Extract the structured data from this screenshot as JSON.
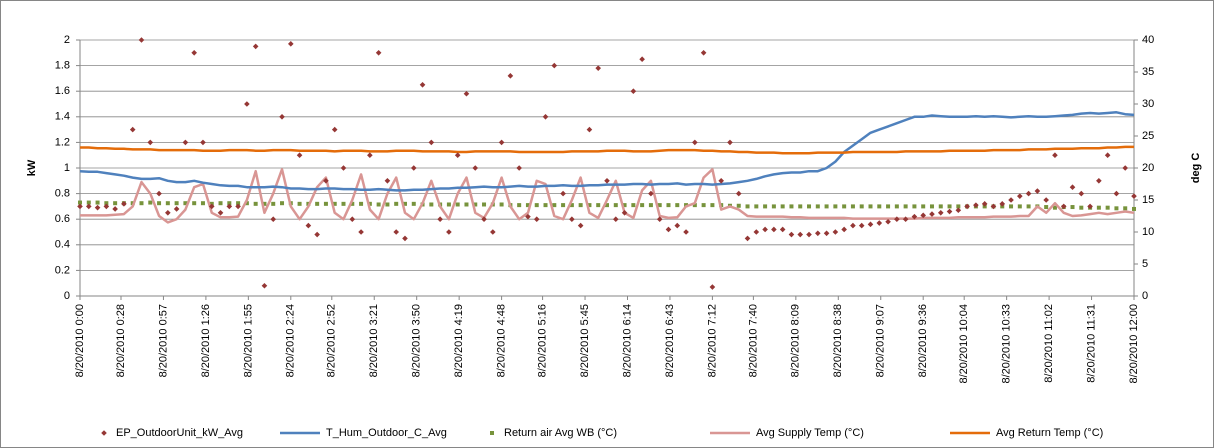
{
  "chart_data": {
    "type": "line",
    "y_label": "kW",
    "y2_label": "deg C",
    "xlim": [
      0,
      720
    ],
    "xticks": [
      {
        "value": 0,
        "label": "8/20/2010 0:00"
      },
      {
        "value": 28,
        "label": "8/20/2010 0:28"
      },
      {
        "value": 57,
        "label": "8/20/2010 0:57"
      },
      {
        "value": 86,
        "label": "8/20/2010 1:26"
      },
      {
        "value": 115,
        "label": "8/20/2010 1:55"
      },
      {
        "value": 144,
        "label": "8/20/2010 2:24"
      },
      {
        "value": 172,
        "label": "8/20/2010 2:52"
      },
      {
        "value": 201,
        "label": "8/20/2010 3:21"
      },
      {
        "value": 230,
        "label": "8/20/2010 3:50"
      },
      {
        "value": 259,
        "label": "8/20/2010 4:19"
      },
      {
        "value": 288,
        "label": "8/20/2010 4:48"
      },
      {
        "value": 316,
        "label": "8/20/2010 5:16"
      },
      {
        "value": 345,
        "label": "8/20/2010 5:45"
      },
      {
        "value": 374,
        "label": "8/20/2010 6:14"
      },
      {
        "value": 403,
        "label": "8/20/2010 6:43"
      },
      {
        "value": 432,
        "label": "8/20/2010 7:12"
      },
      {
        "value": 460,
        "label": "8/20/2010 7:40"
      },
      {
        "value": 489,
        "label": "8/20/2010 8:09"
      },
      {
        "value": 518,
        "label": "8/20/2010 8:38"
      },
      {
        "value": 547,
        "label": "8/20/2010 9:07"
      },
      {
        "value": 576,
        "label": "8/20/2010 9:36"
      },
      {
        "value": 604,
        "label": "8/20/2010 10:04"
      },
      {
        "value": 633,
        "label": "8/20/2010 10:33"
      },
      {
        "value": 662,
        "label": "8/20/2010 11:02"
      },
      {
        "value": 691,
        "label": "8/20/2010 11:31"
      },
      {
        "value": 720,
        "label": "8/20/2010 12:00"
      }
    ],
    "ylim": [
      0,
      2
    ],
    "yticks": [
      0,
      0.2,
      0.4,
      0.6,
      0.8,
      1,
      1.2,
      1.4,
      1.6,
      1.8,
      2
    ],
    "y2lim": [
      0,
      40
    ],
    "y2ticks": [
      0,
      5,
      10,
      15,
      20,
      25,
      30,
      35,
      40
    ],
    "grid": true,
    "legend": "bottom",
    "x": [
      0,
      6,
      12,
      18,
      24,
      30,
      36,
      42,
      48,
      54,
      60,
      66,
      72,
      78,
      84,
      90,
      96,
      102,
      108,
      114,
      120,
      126,
      132,
      138,
      144,
      150,
      156,
      162,
      168,
      174,
      180,
      186,
      192,
      198,
      204,
      210,
      216,
      222,
      228,
      234,
      240,
      246,
      252,
      258,
      264,
      270,
      276,
      282,
      288,
      294,
      300,
      306,
      312,
      318,
      324,
      330,
      336,
      342,
      348,
      354,
      360,
      366,
      372,
      378,
      384,
      390,
      396,
      402,
      408,
      414,
      420,
      426,
      432,
      438,
      444,
      450,
      456,
      462,
      468,
      474,
      480,
      486,
      492,
      498,
      504,
      510,
      516,
      522,
      528,
      534,
      540,
      546,
      552,
      558,
      564,
      570,
      576,
      582,
      588,
      594,
      600,
      606,
      612,
      618,
      624,
      630,
      636,
      642,
      648,
      654,
      660,
      666,
      672,
      678,
      684,
      690,
      696,
      702,
      708,
      714,
      720
    ],
    "series": [
      {
        "name": "EP_OutdoorUnit_kW_Avg",
        "color": "#953735",
        "style": "markers",
        "marker": "diamond",
        "values": [
          0.7,
          0.7,
          0.69,
          0.7,
          0.68,
          0.72,
          1.3,
          2.0,
          1.2,
          0.8,
          0.65,
          0.68,
          1.2,
          1.9,
          1.2,
          0.7,
          0.65,
          0.7,
          0.7,
          1.5,
          1.95,
          0.08,
          0.6,
          1.4,
          1.97,
          1.1,
          0.55,
          0.48,
          0.9,
          1.3,
          1.0,
          0.6,
          0.5,
          1.1,
          1.9,
          0.9,
          0.5,
          0.45,
          1.0,
          1.65,
          1.2,
          0.6,
          0.5,
          1.1,
          1.58,
          1.0,
          0.6,
          0.5,
          1.2,
          1.72,
          1.0,
          0.62,
          0.6,
          1.4,
          1.8,
          0.8,
          0.6,
          0.55,
          1.3,
          1.78,
          0.9,
          0.6,
          0.65,
          1.6,
          1.85,
          0.8,
          0.6,
          0.52,
          0.55,
          0.5,
          1.2,
          1.9,
          0.07,
          0.9,
          1.2,
          0.8,
          0.45,
          0.5,
          0.52,
          0.52,
          0.52,
          0.48,
          0.48,
          0.48,
          0.49,
          0.49,
          0.5,
          0.52,
          0.55,
          0.55,
          0.56,
          0.57,
          0.58,
          0.6,
          0.6,
          0.62,
          0.63,
          0.64,
          0.65,
          0.66,
          0.67,
          0.7,
          0.71,
          0.72,
          0.7,
          0.72,
          0.75,
          0.78,
          0.8,
          0.82,
          0.75,
          1.1,
          0.7,
          0.85,
          0.8,
          0.7,
          0.9,
          1.1,
          0.8,
          1.0,
          0.78
        ]
      },
      {
        "name": "T_Hum_Outdoor_C_Avg",
        "color": "#4f81bd",
        "style": "line",
        "axis": "y2",
        "values": [
          19.5,
          19.4,
          19.4,
          19.2,
          19.0,
          18.8,
          18.5,
          18.3,
          18.3,
          18.4,
          18.0,
          17.8,
          17.8,
          18.0,
          17.7,
          17.5,
          17.3,
          17.2,
          17.2,
          17.0,
          17.0,
          17.0,
          17.1,
          17.0,
          16.8,
          16.8,
          16.7,
          16.7,
          16.8,
          16.8,
          16.7,
          16.7,
          16.6,
          16.6,
          16.7,
          16.6,
          16.5,
          16.5,
          16.6,
          16.6,
          16.7,
          16.8,
          16.8,
          16.9,
          16.9,
          17.0,
          17.1,
          17.0,
          17.0,
          17.1,
          17.2,
          17.1,
          17.1,
          17.2,
          17.2,
          17.3,
          17.2,
          17.2,
          17.3,
          17.3,
          17.4,
          17.4,
          17.4,
          17.5,
          17.5,
          17.4,
          17.5,
          17.5,
          17.6,
          17.4,
          17.5,
          17.5,
          17.4,
          17.5,
          17.6,
          17.8,
          18.0,
          18.3,
          18.7,
          19.0,
          19.2,
          19.3,
          19.3,
          19.5,
          19.5,
          20.0,
          21.0,
          22.5,
          23.5,
          24.5,
          25.5,
          26.0,
          26.5,
          27.0,
          27.5,
          28.0,
          28.0,
          28.2,
          28.1,
          28.0,
          28.0,
          28.0,
          28.1,
          28.0,
          28.1,
          28.0,
          27.9,
          28.0,
          28.1,
          28.0,
          28.0,
          28.1,
          28.2,
          28.3,
          28.5,
          28.6,
          28.5,
          28.6,
          28.7,
          28.4,
          28.3
        ]
      },
      {
        "name": "Return air Avg WB (°C)",
        "color": "#77933c",
        "style": "markers",
        "marker": "square",
        "axis": "y2",
        "values": [
          14.6,
          14.6,
          14.6,
          14.5,
          14.5,
          14.5,
          14.5,
          14.5,
          14.6,
          14.5,
          14.5,
          14.5,
          14.5,
          14.5,
          14.5,
          14.4,
          14.5,
          14.5,
          14.5,
          14.5,
          14.4,
          14.4,
          14.4,
          14.5,
          14.5,
          14.4,
          14.4,
          14.4,
          14.4,
          14.4,
          14.4,
          14.4,
          14.4,
          14.4,
          14.3,
          14.3,
          14.4,
          14.4,
          14.4,
          14.3,
          14.3,
          14.3,
          14.3,
          14.3,
          14.3,
          14.3,
          14.3,
          14.3,
          14.3,
          14.2,
          14.2,
          14.2,
          14.2,
          14.2,
          14.2,
          14.2,
          14.2,
          14.2,
          14.2,
          14.2,
          14.2,
          14.2,
          14.2,
          14.2,
          14.2,
          14.2,
          14.2,
          14.2,
          14.2,
          14.2,
          14.2,
          14.2,
          14.2,
          14.2,
          14.1,
          14.1,
          14.0,
          14.0,
          14.0,
          14.0,
          14.0,
          14.0,
          14.0,
          14.0,
          14.0,
          14.0,
          14.0,
          14.0,
          14.0,
          14.0,
          14.0,
          14.0,
          14.0,
          14.0,
          14.0,
          14.0,
          14.0,
          14.0,
          14.0,
          14.0,
          14.0,
          14.0,
          14.0,
          14.0,
          14.0,
          14.0,
          14.0,
          14.0,
          14.0,
          14.0,
          13.9,
          13.8,
          13.9,
          13.9,
          13.8,
          13.8,
          13.8,
          13.8,
          13.7,
          13.7,
          13.6
        ]
      },
      {
        "name": "Avg Supply Temp (°C)",
        "color": "#d99694",
        "style": "line",
        "axis": "y2",
        "values": [
          12.6,
          12.6,
          12.6,
          12.6,
          12.7,
          12.8,
          14.0,
          17.8,
          16.0,
          12.5,
          11.5,
          12.0,
          13.5,
          17.0,
          17.5,
          13.0,
          12.3,
          12.3,
          12.4,
          15.0,
          19.5,
          13.0,
          16.0,
          19.8,
          14.0,
          12.0,
          14.0,
          17.0,
          18.5,
          13.0,
          12.0,
          15.0,
          19.0,
          13.5,
          12.0,
          16.0,
          18.5,
          13.0,
          12.0,
          14.5,
          18.0,
          14.0,
          12.0,
          16.0,
          18.5,
          13.0,
          12.2,
          14.5,
          18.5,
          14.0,
          12.0,
          13.0,
          18.0,
          17.5,
          12.5,
          12.0,
          15.0,
          18.5,
          13.0,
          12.2,
          15.0,
          18.0,
          13.0,
          12.2,
          16.5,
          18.0,
          12.5,
          12.2,
          12.3,
          14.0,
          14.5,
          18.5,
          19.8,
          13.5,
          14.0,
          13.5,
          12.5,
          12.4,
          12.4,
          12.4,
          12.4,
          12.3,
          12.3,
          12.2,
          12.2,
          12.2,
          12.2,
          12.2,
          12.1,
          12.1,
          12.1,
          12.1,
          12.1,
          12.1,
          12.1,
          12.1,
          12.2,
          12.2,
          12.2,
          12.2,
          12.3,
          12.3,
          12.3,
          12.3,
          12.4,
          12.4,
          12.4,
          12.5,
          12.5,
          14.0,
          13.0,
          14.5,
          13.0,
          12.5,
          12.6,
          12.8,
          13.0,
          12.8,
          13.0,
          13.2,
          13.0
        ]
      },
      {
        "name": "Avg Return Temp (°C)",
        "color": "#e46c0a",
        "style": "line",
        "axis": "y2",
        "values": [
          23.2,
          23.2,
          23.1,
          23.1,
          23.0,
          23.0,
          22.9,
          22.9,
          22.9,
          22.8,
          22.8,
          22.8,
          22.8,
          22.8,
          22.7,
          22.7,
          22.7,
          22.8,
          22.8,
          22.8,
          22.7,
          22.7,
          22.8,
          22.8,
          22.8,
          22.7,
          22.7,
          22.7,
          22.7,
          22.6,
          22.7,
          22.7,
          22.7,
          22.6,
          22.6,
          22.6,
          22.7,
          22.7,
          22.7,
          22.6,
          22.6,
          22.6,
          22.6,
          22.5,
          22.5,
          22.6,
          22.6,
          22.6,
          22.6,
          22.6,
          22.5,
          22.5,
          22.5,
          22.5,
          22.5,
          22.5,
          22.6,
          22.6,
          22.6,
          22.6,
          22.7,
          22.7,
          22.7,
          22.6,
          22.6,
          22.6,
          22.7,
          22.8,
          22.8,
          22.8,
          22.8,
          22.7,
          22.7,
          22.6,
          22.6,
          22.5,
          22.5,
          22.4,
          22.4,
          22.4,
          22.3,
          22.3,
          22.3,
          22.3,
          22.4,
          22.4,
          22.4,
          22.4,
          22.5,
          22.5,
          22.5,
          22.5,
          22.5,
          22.5,
          22.6,
          22.6,
          22.6,
          22.6,
          22.6,
          22.7,
          22.7,
          22.7,
          22.7,
          22.7,
          22.8,
          22.8,
          22.8,
          22.8,
          22.9,
          22.9,
          22.9,
          23.0,
          23.0,
          23.0,
          23.1,
          23.1,
          23.1,
          23.2,
          23.2,
          23.3,
          23.3
        ]
      }
    ]
  }
}
